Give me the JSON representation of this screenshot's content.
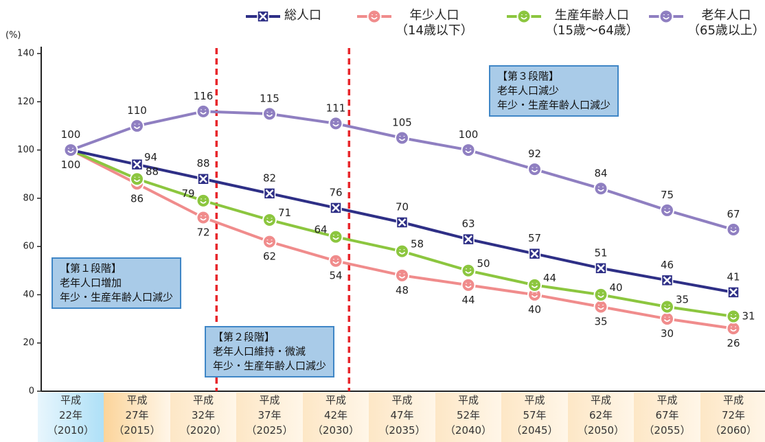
{
  "chart_data": {
    "type": "line",
    "y_label": "(%)",
    "categories": [
      "平成\n22年\n（2010）",
      "平成\n27年\n（2015）",
      "平成\n32年\n（2020）",
      "平成\n37年\n（2025）",
      "平成\n42年\n（2030）",
      "平成\n47年\n（2035）",
      "平成\n52年\n（2040）",
      "平成\n57年\n（2045）",
      "平成\n62年\n（2050）",
      "平成\n67年\n（2055）",
      "平成\n72年\n（2060）"
    ],
    "series": [
      {
        "name": "総人口",
        "color": "#2e2f86",
        "values": [
          100,
          94,
          88,
          82,
          76,
          70,
          63,
          57,
          51,
          46,
          41
        ]
      },
      {
        "name": "年少人口\n（14歳以下）",
        "color": "#f08c8c",
        "values": [
          100,
          86,
          72,
          62,
          54,
          48,
          44,
          40,
          35,
          30,
          26
        ]
      },
      {
        "name": "生産年齢人口\n（15歳～64歳）",
        "color": "#8cc63f",
        "values": [
          100,
          88,
          79,
          71,
          64,
          58,
          50,
          44,
          40,
          35,
          31
        ]
      },
      {
        "name": "老年人口\n（65歳以上）",
        "color": "#8f7fc1",
        "values": [
          100,
          110,
          116,
          115,
          111,
          105,
          100,
          92,
          84,
          75,
          67
        ]
      }
    ],
    "annotations": [
      "【第１段階】\n老年人口増加\n年少・生産年齢人口減少",
      "【第２段階】\n老年人口維持・微減\n年少・生産年齢人口減少",
      "【第３段階】\n老年人口減少\n年少・生産年齢人口減少"
    ],
    "ylim": [
      0,
      140
    ],
    "yticks": [
      0,
      20,
      40,
      60,
      80,
      100,
      120,
      140
    ]
  }
}
